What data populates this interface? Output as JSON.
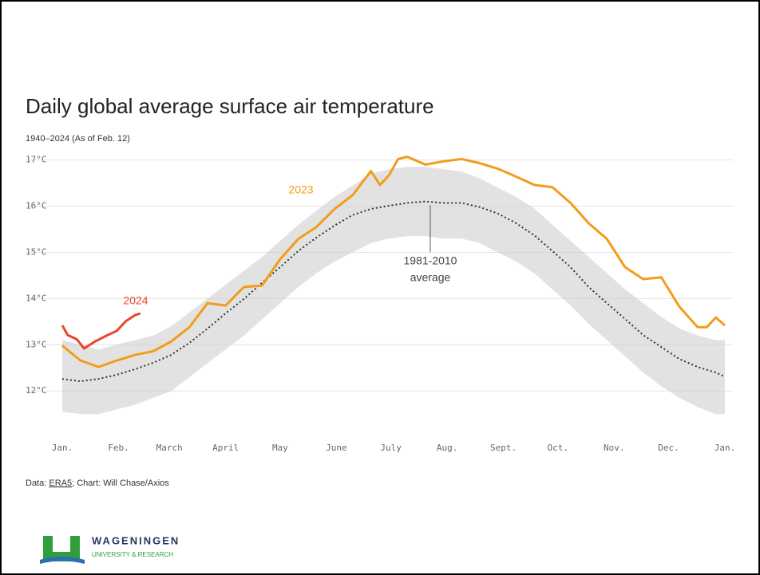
{
  "chart_data": {
    "type": "line",
    "title": "Daily global average surface air temperature",
    "subtitle": "1940–2024 (As of Feb. 12)",
    "xlim": [
      0,
      365
    ],
    "xticks": [
      {
        "value": 0,
        "label": "Jan."
      },
      {
        "value": 31,
        "label": "Feb."
      },
      {
        "value": 59,
        "label": "March"
      },
      {
        "value": 90,
        "label": "April"
      },
      {
        "value": 120,
        "label": "May"
      },
      {
        "value": 151,
        "label": "June"
      },
      {
        "value": 181,
        "label": "July"
      },
      {
        "value": 212,
        "label": "Aug."
      },
      {
        "value": 243,
        "label": "Sept."
      },
      {
        "value": 273,
        "label": "Oct."
      },
      {
        "value": 304,
        "label": "Nov."
      },
      {
        "value": 334,
        "label": "Dec."
      },
      {
        "value": 365,
        "label": "Jan."
      }
    ],
    "ylim": [
      11.4,
      17.2
    ],
    "yticks": [
      {
        "value": 12,
        "label": "12°C"
      },
      {
        "value": 13,
        "label": "13°C"
      },
      {
        "value": 14,
        "label": "14°C"
      },
      {
        "value": 15,
        "label": "15°C"
      },
      {
        "value": 16,
        "label": "16°C"
      },
      {
        "value": 17,
        "label": "17°C"
      }
    ],
    "grid": true,
    "band": {
      "color": "#cfcfcf",
      "x": [
        0,
        10,
        20,
        30,
        40,
        50,
        60,
        70,
        80,
        90,
        100,
        110,
        120,
        130,
        140,
        150,
        160,
        170,
        180,
        190,
        200,
        210,
        220,
        230,
        240,
        250,
        260,
        270,
        280,
        290,
        300,
        310,
        320,
        330,
        340,
        350,
        360,
        365
      ],
      "low": [
        11.55,
        11.5,
        11.5,
        11.6,
        11.7,
        11.85,
        12.0,
        12.3,
        12.6,
        12.9,
        13.2,
        13.55,
        13.9,
        14.25,
        14.55,
        14.8,
        15.0,
        15.2,
        15.3,
        15.35,
        15.35,
        15.3,
        15.3,
        15.2,
        15.0,
        14.8,
        14.55,
        14.2,
        13.85,
        13.45,
        13.1,
        12.75,
        12.4,
        12.1,
        11.85,
        11.65,
        11.5,
        11.5
      ],
      "high": [
        13.1,
        13.0,
        12.9,
        13.0,
        13.1,
        13.2,
        13.4,
        13.7,
        14.0,
        14.3,
        14.6,
        14.9,
        15.25,
        15.6,
        15.9,
        16.2,
        16.45,
        16.7,
        16.8,
        16.85,
        16.85,
        16.8,
        16.75,
        16.6,
        16.4,
        16.2,
        15.95,
        15.6,
        15.25,
        14.9,
        14.55,
        14.2,
        13.9,
        13.6,
        13.35,
        13.2,
        13.1,
        13.1
      ]
    },
    "series": [
      {
        "label": [
          "1981-2010",
          "average"
        ],
        "color": "#333333",
        "dashed": true,
        "x": [
          0,
          10,
          20,
          30,
          40,
          50,
          60,
          70,
          80,
          90,
          100,
          110,
          120,
          130,
          140,
          150,
          160,
          170,
          180,
          190,
          200,
          210,
          220,
          230,
          240,
          250,
          260,
          270,
          280,
          290,
          300,
          310,
          320,
          330,
          340,
          350,
          360,
          365
        ],
        "values": [
          12.26,
          12.21,
          12.26,
          12.35,
          12.47,
          12.61,
          12.78,
          13.04,
          13.35,
          13.68,
          13.99,
          14.34,
          14.68,
          15.03,
          15.32,
          15.58,
          15.81,
          15.94,
          16.01,
          16.07,
          16.1,
          16.07,
          16.07,
          15.98,
          15.84,
          15.63,
          15.37,
          15.03,
          14.68,
          14.25,
          13.9,
          13.56,
          13.21,
          12.95,
          12.69,
          12.52,
          12.4,
          12.31
        ]
      },
      {
        "name": "2023",
        "color": "#f39c1a",
        "x": [
          0,
          10,
          20,
          30,
          40,
          50,
          60,
          70,
          80,
          90,
          100,
          110,
          120,
          130,
          140,
          150,
          160,
          170,
          175,
          180,
          185,
          190,
          200,
          210,
          220,
          230,
          240,
          250,
          260,
          270,
          280,
          290,
          300,
          310,
          320,
          330,
          340,
          350,
          355,
          360,
          365
        ],
        "values": [
          12.98,
          12.66,
          12.52,
          12.66,
          12.78,
          12.86,
          13.07,
          13.38,
          13.9,
          13.85,
          14.25,
          14.28,
          14.85,
          15.29,
          15.55,
          15.94,
          16.24,
          16.76,
          16.46,
          16.67,
          17.02,
          17.07,
          16.9,
          16.97,
          17.02,
          16.93,
          16.81,
          16.64,
          16.46,
          16.41,
          16.07,
          15.63,
          15.29,
          14.68,
          14.42,
          14.46,
          13.82,
          13.38,
          13.38,
          13.59,
          13.42
        ]
      },
      {
        "name": "2024",
        "color": "#e8452c",
        "x": [
          0,
          3,
          8,
          12,
          18,
          25,
          30,
          35,
          40,
          43
        ],
        "values": [
          13.42,
          13.21,
          13.12,
          12.92,
          13.07,
          13.21,
          13.3,
          13.51,
          13.64,
          13.68
        ]
      }
    ],
    "source": {
      "prefix": "Data: ",
      "link": "ERA5",
      "suffix": "; Chart: Will Chase/Axios"
    },
    "logo": {
      "name": "WAGENINGEN",
      "tagline": "UNIVERSITY & RESEARCH"
    }
  }
}
